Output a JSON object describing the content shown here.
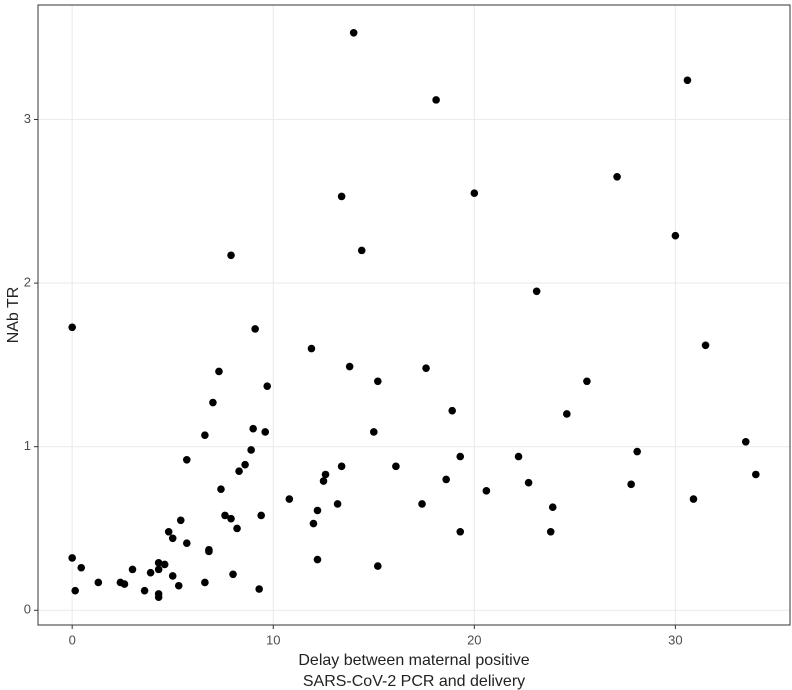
{
  "chart_data": {
    "type": "scatter",
    "xlabel": [
      "Delay between maternal positive",
      "SARS-CoV-2 PCR and delivery"
    ],
    "ylabel": "NAb TR",
    "color": "#000000",
    "grid": true,
    "xlim": [
      -1.7,
      35.7
    ],
    "ylim": [
      -0.09,
      3.7
    ],
    "xticks": [
      0,
      10,
      20,
      30
    ],
    "yticks": [
      0,
      1,
      2,
      3
    ],
    "x": [
      0,
      0,
      0.15,
      0.45,
      1.3,
      2.4,
      2.6,
      3.0,
      3.6,
      3.9,
      4.3,
      4.3,
      4.3,
      4.3,
      4.6,
      4.8,
      5.0,
      5.0,
      5.3,
      5.4,
      5.7,
      5.7,
      6.6,
      6.6,
      6.8,
      6.8,
      7.0,
      7.3,
      7.4,
      7.6,
      7.9,
      7.9,
      8.0,
      8.2,
      8.3,
      8.6,
      8.9,
      9.0,
      9.1,
      9.3,
      9.4,
      9.6,
      9.7,
      10.8,
      11.9,
      12.0,
      12.2,
      12.2,
      12.5,
      12.6,
      13.2,
      13.4,
      13.4,
      13.8,
      14.0,
      14.4,
      15.0,
      15.2,
      15.2,
      16.1,
      17.4,
      17.6,
      18.1,
      18.6,
      18.9,
      19.3,
      19.3,
      20.0,
      20.6,
      22.2,
      22.7,
      23.1,
      23.8,
      23.9,
      24.6,
      25.6,
      27.1,
      27.8,
      28.1,
      30.0,
      30.6,
      30.9,
      31.5,
      33.5,
      34.0
    ],
    "values": [
      1.73,
      0.32,
      0.12,
      0.26,
      0.17,
      0.17,
      0.16,
      0.25,
      0.12,
      0.23,
      0.29,
      0.25,
      0.1,
      0.08,
      0.28,
      0.48,
      0.44,
      0.21,
      0.15,
      0.55,
      0.92,
      0.41,
      1.07,
      0.17,
      0.37,
      0.36,
      1.27,
      1.46,
      0.74,
      0.58,
      0.56,
      2.17,
      0.22,
      0.5,
      0.85,
      0.89,
      0.98,
      1.11,
      1.72,
      0.13,
      0.58,
      1.09,
      1.37,
      0.68,
      1.6,
      0.53,
      0.61,
      0.31,
      0.79,
      0.83,
      0.65,
      0.88,
      2.53,
      1.49,
      3.53,
      2.2,
      1.09,
      1.4,
      0.27,
      0.88,
      0.65,
      1.48,
      3.12,
      0.8,
      1.22,
      0.94,
      0.48,
      2.55,
      0.73,
      0.94,
      0.78,
      1.95,
      0.48,
      0.63,
      1.2,
      1.4,
      2.65,
      0.77,
      0.97,
      2.29,
      3.24,
      0.68,
      1.62,
      1.03,
      0.83
    ]
  }
}
